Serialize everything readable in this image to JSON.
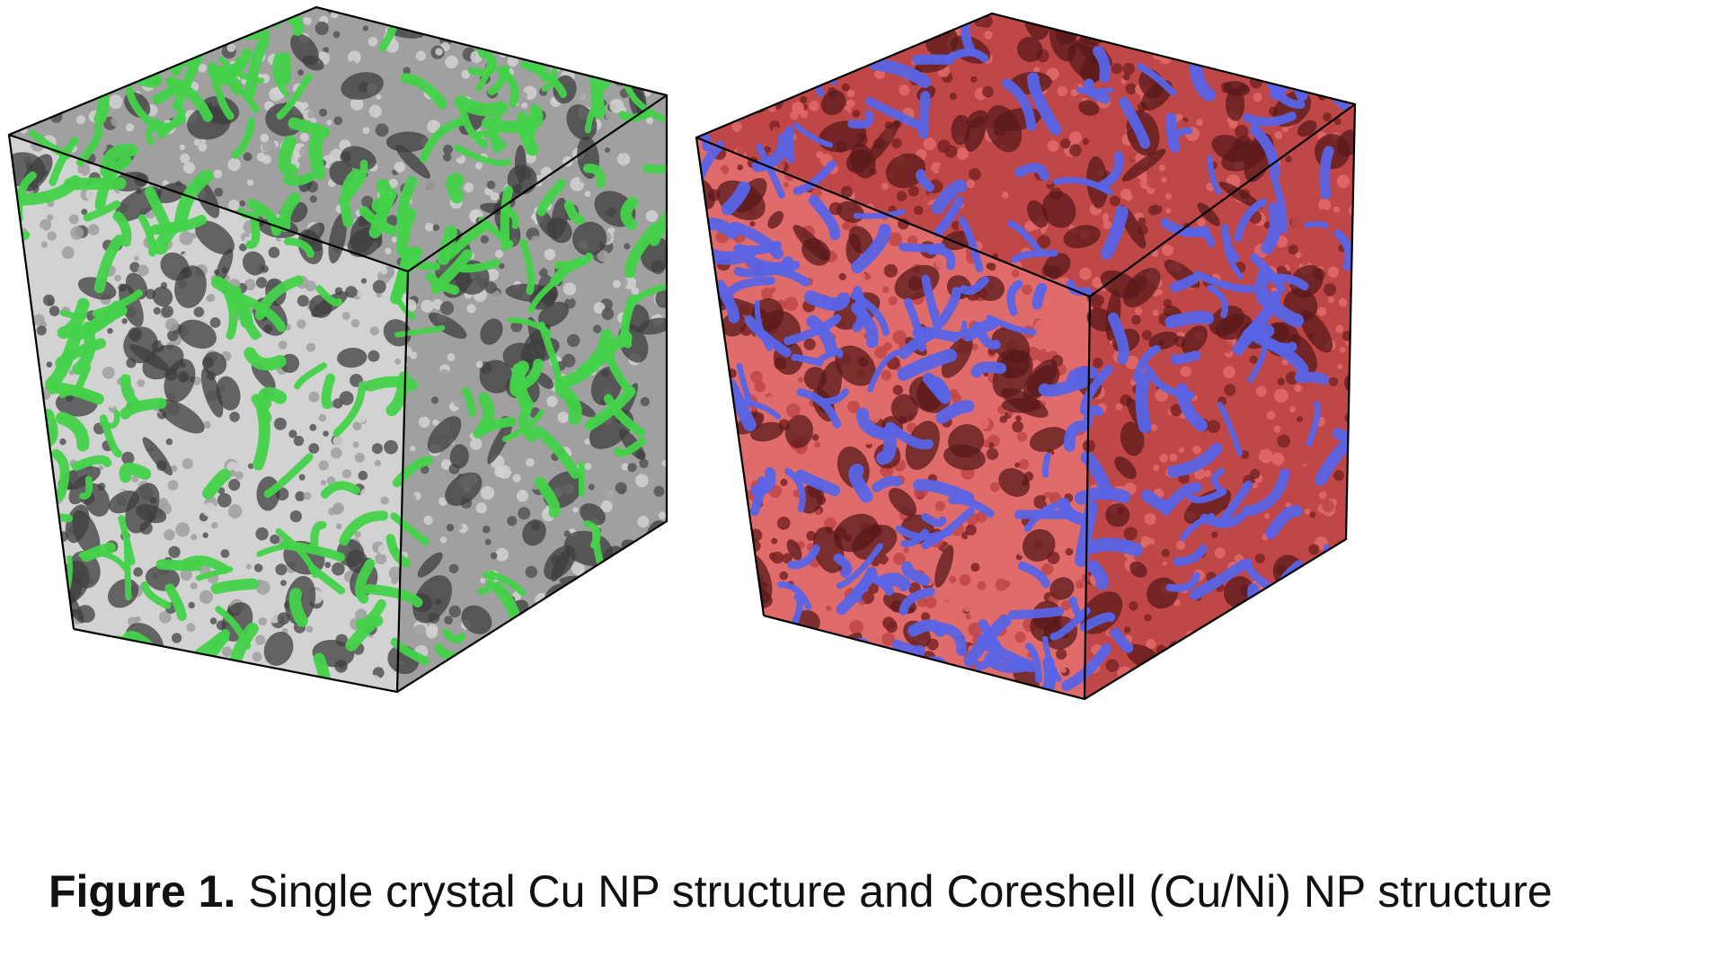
{
  "figure": {
    "panels": [
      {
        "name": "single-crystal-cu-np",
        "colors": {
          "face_surface": "#45d24a",
          "face_surface_stroke": "#1f8a24",
          "atom_light": "#d2d2d2",
          "atom_mid": "#a0a0a0",
          "atom_dark": "#555555",
          "pore": "#3e3e3e",
          "edge": "#000000"
        }
      },
      {
        "name": "coreshell-cu-ni-np",
        "colors": {
          "face_surface": "#5864e6",
          "face_surface_stroke": "#2f38a6",
          "atom_light": "#e06b6b",
          "atom_mid": "#c04747",
          "atom_dark": "#7a2424",
          "pore": "#5a1a1a",
          "edge": "#000000"
        }
      }
    ],
    "caption": {
      "label": "Figure 1.",
      "text": " Single crystal Cu NP structure and Coreshell (Cu/Ni) NP structure"
    }
  }
}
